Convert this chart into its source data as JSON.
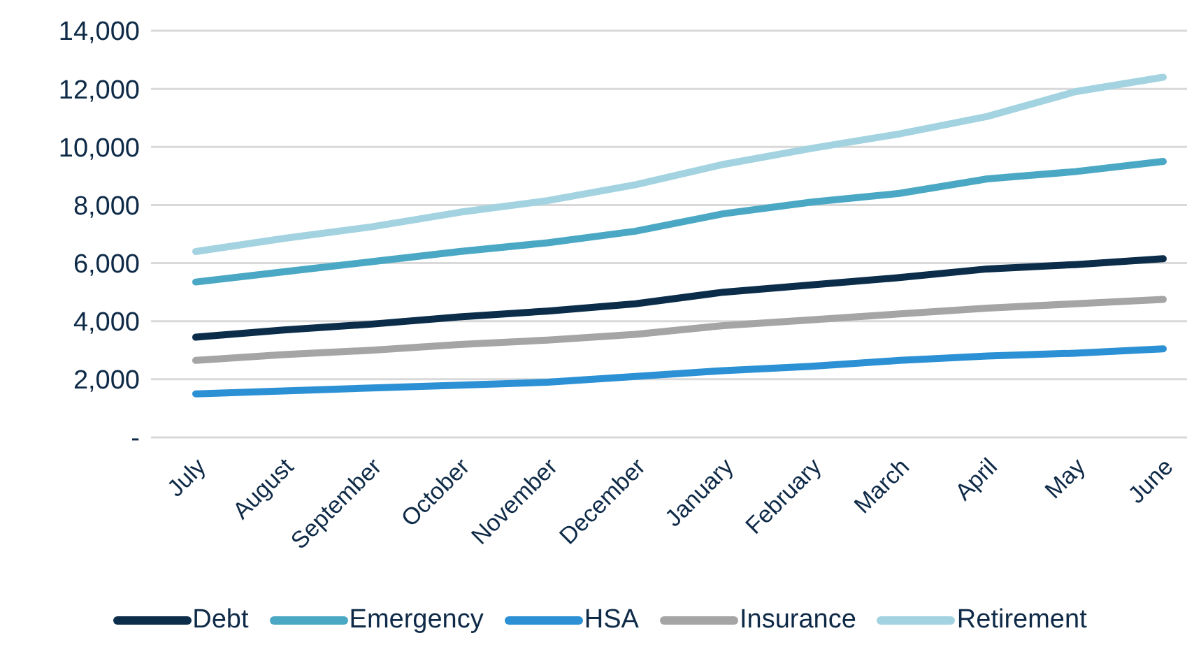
{
  "chart_data": {
    "type": "line",
    "categories": [
      "July",
      "August",
      "September",
      "October",
      "November",
      "December",
      "January",
      "February",
      "March",
      "April",
      "May",
      "June"
    ],
    "series": [
      {
        "name": "Debt",
        "color": "#0b2d4a",
        "values": [
          3450,
          3700,
          3900,
          4150,
          4350,
          4600,
          5000,
          5250,
          5500,
          5800,
          5950,
          6150
        ]
      },
      {
        "name": "Emergency",
        "color": "#4aa8c4",
        "values": [
          5350,
          5700,
          6050,
          6400,
          6700,
          7100,
          7700,
          8100,
          8400,
          8900,
          9150,
          9500
        ]
      },
      {
        "name": "HSA",
        "color": "#2b90d4",
        "values": [
          1500,
          1600,
          1700,
          1800,
          1900,
          2100,
          2300,
          2450,
          2650,
          2800,
          2900,
          3050
        ]
      },
      {
        "name": "Insurance",
        "color": "#a5a5a5",
        "values": [
          2650,
          2850,
          3000,
          3200,
          3350,
          3550,
          3850,
          4050,
          4250,
          4450,
          4600,
          4750
        ]
      },
      {
        "name": "Retirement",
        "color": "#a3d3e0",
        "values": [
          6400,
          6850,
          7250,
          7750,
          8150,
          8700,
          9400,
          9950,
          10450,
          11050,
          11900,
          12400
        ]
      }
    ],
    "ylim": [
      0,
      14000
    ],
    "yticks": [
      {
        "value": 0,
        "label": "-"
      },
      {
        "value": 2000,
        "label": "2,000"
      },
      {
        "value": 4000,
        "label": "4,000"
      },
      {
        "value": 6000,
        "label": "6,000"
      },
      {
        "value": 8000,
        "label": "8,000"
      },
      {
        "value": 10000,
        "label": "10,000"
      },
      {
        "value": 12000,
        "label": "12,000"
      },
      {
        "value": 14000,
        "label": "14,000"
      }
    ],
    "grid": "y",
    "legend": "bottom",
    "marker": "none",
    "line_style": "solid"
  }
}
